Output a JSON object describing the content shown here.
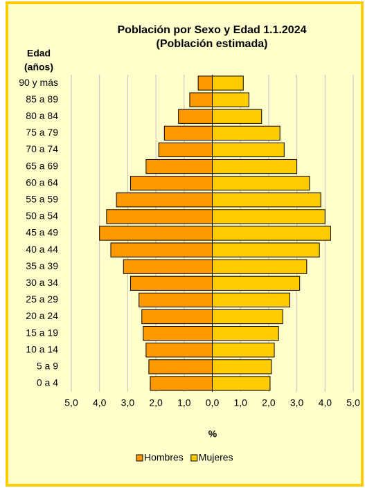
{
  "chart_data": {
    "type": "pyramid",
    "title": "Población por Sexo y Edad 1.1.2024",
    "subtitle": "(Población estimada)",
    "y_label_line1": "Edad",
    "y_label_line2": "(años)",
    "x_label": "%",
    "categories": [
      "90 y más",
      "85 a 89",
      "80 a 84",
      "75 a 79",
      "70 a 74",
      "65 a 69",
      "60 a 64",
      "55 a 59",
      "50 a 54",
      "45 a 49",
      "40 a 44",
      "35 a 39",
      "30 a 34",
      "25 a 29",
      "20 a 24",
      "15 a 19",
      "10 a 14",
      "5 a 9",
      "0 a 4"
    ],
    "series": [
      {
        "name": "Hombres",
        "color": "#ff9900",
        "side": "left",
        "values": [
          0.5,
          0.8,
          1.2,
          1.7,
          1.9,
          2.35,
          2.9,
          3.4,
          3.75,
          4.0,
          3.6,
          3.15,
          2.9,
          2.6,
          2.5,
          2.45,
          2.35,
          2.25,
          2.2
        ]
      },
      {
        "name": "Mujeres",
        "color": "#ffcc00",
        "side": "right",
        "values": [
          1.1,
          1.3,
          1.75,
          2.4,
          2.55,
          3.0,
          3.45,
          3.85,
          4.0,
          4.2,
          3.8,
          3.35,
          3.1,
          2.75,
          2.5,
          2.35,
          2.2,
          2.1,
          2.05
        ]
      }
    ],
    "xlim": [
      -5,
      5
    ],
    "xticks": [
      {
        "value": -5,
        "label": "5,0"
      },
      {
        "value": -4,
        "label": "4,0"
      },
      {
        "value": -3,
        "label": "3,0"
      },
      {
        "value": -2,
        "label": "2,0"
      },
      {
        "value": -1,
        "label": "1,0"
      },
      {
        "value": 0,
        "label": "0,0"
      },
      {
        "value": 1,
        "label": "1,0"
      },
      {
        "value": 2,
        "label": "2,0"
      },
      {
        "value": 3,
        "label": "3,0"
      },
      {
        "value": 4,
        "label": "4,0"
      },
      {
        "value": 5,
        "label": "5,0"
      }
    ],
    "grid": true
  }
}
